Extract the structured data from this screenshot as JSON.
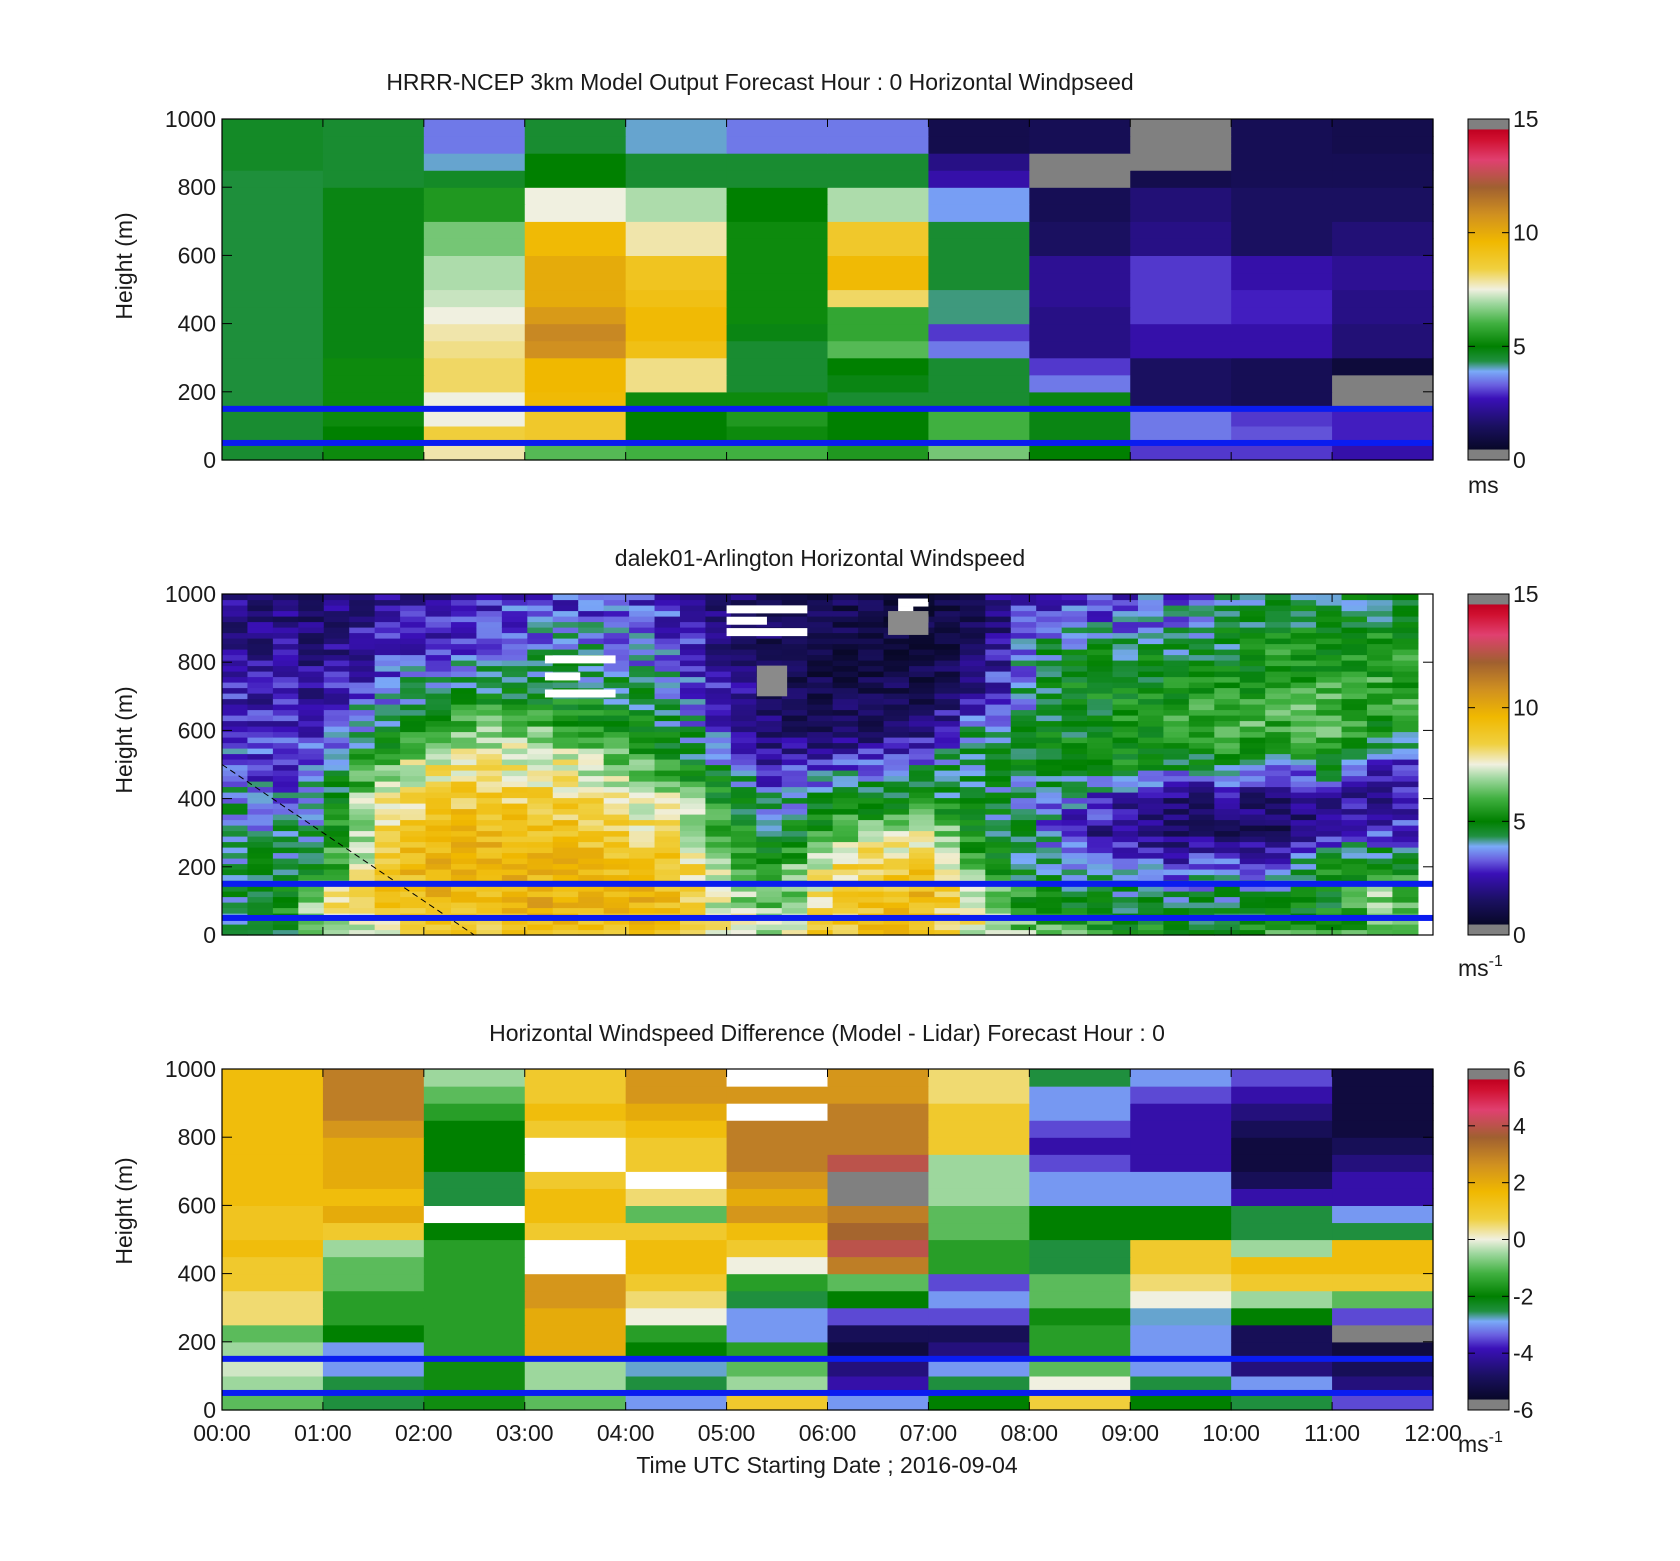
{
  "figure": {
    "xlabel": "Time UTC  Starting Date ; 2016-09-04",
    "x_tick_labels": [
      "00:00",
      "01:00",
      "02:00",
      "03:00",
      "04:00",
      "05:00",
      "06:00",
      "07:00",
      "08:00",
      "09:00",
      "10:00",
      "11:00",
      "12:00"
    ]
  },
  "colors": {
    "reference_line": "#0a1cf0",
    "axis": "#000000"
  },
  "chart_data": [
    {
      "type": "heatmap",
      "title": "HRRR-NCEP 3km Model Output   Forecast Hour : 0 Horizontal Windpseed",
      "ylabel": "Height (m)",
      "xlim": [
        "00:00",
        "12:00"
      ],
      "ylim": [
        0,
        1000
      ],
      "y_tick_labels": [
        "0",
        "200",
        "400",
        "600",
        "800",
        "1000"
      ],
      "colorbar": {
        "range": [
          0,
          15
        ],
        "tick_labels": [
          "0",
          "5",
          "10",
          "15"
        ],
        "unit": "ms",
        "unit_sup": ""
      },
      "reference_lines_height_m": [
        150,
        50
      ],
      "x_hours": [
        0.5,
        1.5,
        2.5,
        3.5,
        4.5,
        5.5,
        6.5,
        7.5,
        8.5,
        9.5,
        10.5,
        11.5
      ],
      "heights_m": [
        25,
        75,
        125,
        175,
        225,
        275,
        325,
        375,
        425,
        475,
        525,
        575,
        625,
        675,
        725,
        775,
        825,
        875,
        925,
        975
      ],
      "speeds": [
        [
          4.5,
          5.2,
          7.8,
          6.2,
          6.0,
          6.0,
          5.5,
          6.5,
          5.0,
          3.0,
          3.0,
          2.5
        ],
        [
          4.5,
          5.0,
          8.5,
          8.8,
          5.0,
          5.2,
          5.0,
          6.0,
          4.8,
          3.5,
          3.2,
          2.8
        ],
        [
          4.5,
          5.2,
          7.5,
          8.8,
          5.0,
          5.5,
          5.0,
          6.0,
          4.8,
          3.5,
          3.0,
          2.8
        ],
        [
          4.4,
          5.2,
          7.5,
          9.5,
          5.2,
          5.2,
          4.5,
          4.5,
          4.8,
          1.5,
          1.2,
          1.5
        ],
        [
          4.4,
          5.2,
          8.2,
          9.6,
          8.0,
          4.5,
          4.8,
          4.5,
          3.5,
          1.5,
          1.2,
          0.5
        ],
        [
          4.4,
          5.2,
          8.2,
          9.6,
          8.0,
          4.5,
          5.0,
          4.5,
          3.0,
          1.5,
          1.2,
          0.5
        ],
        [
          4.4,
          4.8,
          8.0,
          10.8,
          9.2,
          4.5,
          6.2,
          3.5,
          2.0,
          2.5,
          2.5,
          1.8
        ],
        [
          4.4,
          4.8,
          7.8,
          11.0,
          9.5,
          4.8,
          5.8,
          3.0,
          2.0,
          2.5,
          2.5,
          1.8
        ],
        [
          4.4,
          4.8,
          7.5,
          10.5,
          9.5,
          5.2,
          5.8,
          4.2,
          2.0,
          3.0,
          2.8,
          2.0
        ],
        [
          4.4,
          4.8,
          7.2,
          10.0,
          9.2,
          5.2,
          8.2,
          4.2,
          2.2,
          3.0,
          2.8,
          2.0
        ],
        [
          4.4,
          4.8,
          7.0,
          10.0,
          9.0,
          5.2,
          9.5,
          4.5,
          2.2,
          3.0,
          2.5,
          2.2
        ],
        [
          4.4,
          4.8,
          7.0,
          10.0,
          9.0,
          5.2,
          9.5,
          4.5,
          2.2,
          3.0,
          2.5,
          2.2
        ],
        [
          4.4,
          4.8,
          6.5,
          9.5,
          7.8,
          5.2,
          8.8,
          4.5,
          1.5,
          2.0,
          1.5,
          1.8
        ],
        [
          4.4,
          4.8,
          6.5,
          9.5,
          7.8,
          5.2,
          8.8,
          4.5,
          1.5,
          2.0,
          1.5,
          1.8
        ],
        [
          4.4,
          4.8,
          5.5,
          7.5,
          7.0,
          5.0,
          7.0,
          3.8,
          1.2,
          1.8,
          1.5,
          1.5
        ],
        [
          4.4,
          4.8,
          5.5,
          7.5,
          7.0,
          5.0,
          7.0,
          3.8,
          1.2,
          1.8,
          1.5,
          1.5
        ],
        [
          4.4,
          4.5,
          4.6,
          5.0,
          4.5,
          4.5,
          4.5,
          2.5,
          1.0,
          1.0,
          1.2,
          1.2
        ],
        [
          4.6,
          4.5,
          4.0,
          5.0,
          4.5,
          4.5,
          4.5,
          2.0,
          0.6,
          0.5,
          1.2,
          1.2
        ],
        [
          4.6,
          4.5,
          3.5,
          4.5,
          4.0,
          3.5,
          3.5,
          1.0,
          1.2,
          0.8,
          1.2,
          1.0
        ],
        [
          4.6,
          4.5,
          3.5,
          4.5,
          4.0,
          3.5,
          3.5,
          1.0,
          1.2,
          0.8,
          1.2,
          1.0
        ]
      ],
      "missing_cells": [
        [
          16,
          8
        ],
        [
          17,
          8
        ],
        [
          17,
          9
        ],
        [
          18,
          9
        ],
        [
          19,
          9
        ],
        [
          3,
          11
        ],
        [
          4,
          11
        ]
      ]
    },
    {
      "type": "heatmap",
      "title": "dalek01-Arlington  Horizontal Windspeed",
      "ylabel": "Height (m)",
      "xlim": [
        "00:00",
        "12:00"
      ],
      "ylim": [
        0,
        1000
      ],
      "y_tick_labels": [
        "0",
        "200",
        "400",
        "600",
        "800",
        "1000"
      ],
      "colorbar": {
        "range": [
          0,
          15
        ],
        "tick_labels": [
          "0",
          "5",
          "10",
          "15"
        ],
        "unit": "ms",
        "unit_sup": "-1"
      },
      "reference_lines_height_m": [
        150,
        50
      ],
      "lidar_x_end_hour": 11.85,
      "dashed_line": {
        "x_hours": [
          0.0,
          2.5
        ],
        "heights_m": [
          500,
          0
        ]
      },
      "keyframes_hour": [
        0,
        0.5,
        1,
        1.5,
        2,
        2.5,
        3,
        3.5,
        4,
        4.5,
        5,
        5.5,
        6,
        6.5,
        7,
        7.5,
        8,
        8.5,
        9,
        9.5,
        10,
        10.5,
        11,
        11.5,
        12
      ],
      "keyframes_height_m": [
        0,
        100,
        200,
        300,
        400,
        500,
        600,
        700,
        800,
        900,
        1000
      ],
      "keyframe_speeds": [
        [
          4.5,
          4.2,
          4.2,
          4.5,
          4.0,
          3.5,
          3.0,
          2.8,
          2.5,
          2.2,
          2.0
        ],
        [
          4.5,
          5.0,
          4.5,
          4.0,
          3.5,
          3.0,
          2.8,
          2.5,
          2.3,
          2.0,
          1.8
        ],
        [
          6.0,
          7.5,
          5.0,
          4.5,
          4.0,
          3.5,
          3.0,
          2.5,
          2.0,
          1.8,
          1.5
        ],
        [
          7.5,
          9.0,
          8.5,
          8.0,
          7.5,
          6.0,
          4.5,
          3.5,
          2.8,
          2.5,
          2.2
        ],
        [
          8.5,
          9.5,
          9.5,
          9.2,
          8.5,
          7.5,
          6.0,
          4.5,
          3.5,
          2.5,
          2.2
        ],
        [
          8.5,
          9.5,
          9.5,
          9.5,
          8.8,
          8.0,
          6.5,
          5.0,
          3.8,
          3.0,
          2.5
        ],
        [
          8.8,
          9.8,
          9.5,
          9.2,
          8.5,
          7.8,
          6.5,
          5.0,
          4.0,
          3.5,
          3.0
        ],
        [
          9.0,
          9.8,
          9.5,
          9.0,
          8.5,
          7.5,
          6.0,
          5.0,
          4.2,
          3.5,
          3.0
        ],
        [
          9.0,
          9.5,
          9.2,
          8.5,
          7.5,
          6.5,
          5.5,
          4.5,
          4.0,
          3.5,
          3.0
        ],
        [
          9.0,
          9.5,
          9.0,
          8.0,
          7.0,
          5.5,
          4.5,
          4.0,
          3.5,
          3.0,
          2.8
        ],
        [
          8.0,
          7.0,
          6.5,
          6.0,
          5.0,
          4.0,
          3.0,
          2.5,
          2.0,
          1.8,
          1.5
        ],
        [
          7.0,
          6.0,
          5.5,
          4.5,
          3.5,
          2.5,
          1.5,
          1.2,
          1.0,
          1.2,
          1.5
        ],
        [
          9.0,
          8.5,
          8.0,
          6.0,
          4.5,
          3.0,
          1.5,
          1.0,
          0.8,
          1.0,
          1.2
        ],
        [
          9.0,
          9.0,
          8.8,
          7.0,
          5.0,
          3.5,
          1.5,
          1.0,
          0.8,
          0.8,
          1.0
        ],
        [
          9.2,
          9.5,
          9.2,
          7.5,
          5.0,
          4.0,
          2.0,
          1.2,
          0.8,
          0.8,
          1.0
        ],
        [
          7.5,
          7.0,
          6.0,
          5.0,
          4.5,
          4.5,
          4.2,
          2.5,
          1.5,
          1.0,
          1.0
        ],
        [
          6.5,
          5.5,
          4.5,
          4.2,
          4.0,
          4.5,
          4.5,
          4.0,
          4.2,
          3.5,
          2.8
        ],
        [
          6.0,
          4.5,
          4.0,
          2.5,
          3.5,
          4.8,
          5.0,
          5.0,
          5.2,
          3.5,
          2.8
        ],
        [
          5.5,
          4.5,
          3.5,
          2.0,
          2.5,
          5.0,
          5.5,
          5.0,
          5.0,
          3.5,
          3.0
        ],
        [
          5.0,
          4.5,
          3.0,
          1.5,
          1.5,
          4.5,
          5.5,
          5.5,
          5.0,
          4.0,
          3.5
        ],
        [
          5.5,
          4.5,
          3.5,
          1.5,
          2.0,
          5.0,
          6.0,
          5.5,
          5.0,
          4.5,
          4.0
        ],
        [
          6.0,
          4.5,
          3.5,
          1.2,
          1.5,
          3.5,
          6.0,
          6.0,
          5.5,
          5.0,
          4.5
        ],
        [
          6.0,
          5.0,
          5.5,
          2.5,
          2.0,
          5.0,
          6.0,
          6.0,
          5.5,
          5.0,
          4.5
        ],
        [
          5.5,
          7.0,
          5.5,
          3.0,
          2.2,
          2.5,
          5.0,
          6.0,
          5.5,
          5.0,
          4.5
        ],
        [
          5.0,
          5.5,
          5.0,
          3.0,
          2.5,
          3.0,
          4.5,
          5.5,
          5.5,
          5.0,
          4.5
        ]
      ],
      "missing_patches": [
        {
          "x_hours": [
            3.2,
            3.9
          ],
          "heights_m": [
            700,
            850
          ]
        },
        {
          "x_hours": [
            5.0,
            5.8
          ],
          "heights_m": [
            880,
            980
          ]
        },
        {
          "x_hours": [
            6.7,
            7.0
          ],
          "heights_m": [
            920,
            990
          ]
        }
      ],
      "grey_patches": [
        {
          "x_hours": [
            5.3,
            5.6
          ],
          "heights_m": [
            700,
            790
          ]
        },
        {
          "x_hours": [
            6.6,
            7.0
          ],
          "heights_m": [
            880,
            950
          ]
        }
      ]
    },
    {
      "type": "heatmap",
      "title": "Horizontal Windspeed Difference (Model - Lidar) Forecast Hour : 0",
      "ylabel": "Height (m)",
      "xlim": [
        "00:00",
        "12:00"
      ],
      "ylim": [
        0,
        1000
      ],
      "y_tick_labels": [
        "0",
        "200",
        "400",
        "600",
        "800",
        "1000"
      ],
      "colorbar": {
        "range": [
          -6,
          6
        ],
        "tick_labels": [
          "-6",
          "-4",
          "-2",
          "0",
          "2",
          "4",
          "6"
        ],
        "unit": "ms",
        "unit_sup": "-1"
      },
      "reference_lines_height_m": [
        150,
        50
      ],
      "x_hours": [
        0.5,
        1.5,
        2.5,
        3.5,
        4.5,
        5.5,
        6.5,
        7.5,
        8.5,
        9.5,
        10.5,
        11.5
      ],
      "heights_m": [
        25,
        75,
        125,
        175,
        225,
        275,
        325,
        375,
        425,
        475,
        525,
        575,
        625,
        675,
        725,
        775,
        825,
        875,
        925,
        975
      ],
      "differences": [
        [
          -1.0,
          -2.5,
          -1.8,
          -1.0,
          -3.0,
          1.0,
          -3.0,
          -2.0,
          0.8,
          -2.0,
          -2.5,
          -3.5
        ],
        [
          -0.5,
          -2.5,
          -1.8,
          -0.5,
          -2.5,
          -0.5,
          -4.0,
          -2.5,
          0.0,
          -2.5,
          -3.0,
          -4.5
        ],
        [
          -0.2,
          -3.0,
          -1.8,
          -0.5,
          -2.8,
          -1.0,
          -4.5,
          -3.0,
          -1.0,
          -3.0,
          -4.5,
          -5.0
        ],
        [
          -0.5,
          -3.0,
          -1.5,
          2.0,
          -2.0,
          -1.5,
          -5.5,
          -4.5,
          -1.5,
          -3.0,
          -5.0,
          -5.5
        ],
        [
          -1.0,
          -2.0,
          -1.5,
          2.0,
          -1.5,
          -3.0,
          -5.0,
          -5.0,
          -1.5,
          -3.0,
          -5.0,
          -2.5
        ],
        [
          0.5,
          -1.5,
          -1.5,
          2.0,
          0.0,
          -3.0,
          -3.5,
          -3.5,
          -1.8,
          -2.8,
          -2.0,
          -3.5
        ],
        [
          0.5,
          -1.5,
          -1.5,
          2.5,
          0.5,
          -2.5,
          -2.0,
          -3.0,
          -1.0,
          0.0,
          -0.5,
          -1.0
        ],
        [
          1.0,
          -1.0,
          -1.5,
          2.5,
          1.0,
          -1.5,
          -1.0,
          -3.5,
          -1.0,
          0.5,
          1.0,
          1.0
        ],
        [
          1.0,
          -1.0,
          -1.5,
          3.0,
          1.5,
          0.0,
          3.0,
          -1.5,
          -2.5,
          1.0,
          1.5,
          1.5
        ],
        [
          1.5,
          -0.5,
          -1.5,
          3.5,
          1.5,
          1.0,
          4.0,
          -1.5,
          -2.5,
          1.0,
          -0.5,
          1.5
        ],
        [
          1.2,
          1.0,
          -2.0,
          1.0,
          1.0,
          1.5,
          3.5,
          -1.0,
          -2.0,
          -2.0,
          -2.5,
          -2.5
        ],
        [
          1.2,
          2.0,
          -2.0,
          1.5,
          -1.0,
          2.5,
          3.0,
          -1.0,
          -2.0,
          -2.0,
          -2.5,
          -3.0
        ],
        [
          1.5,
          1.5,
          -2.5,
          1.5,
          0.5,
          2.0,
          3.5,
          -0.5,
          -3.0,
          -3.0,
          -4.0,
          -4.0
        ],
        [
          1.5,
          2.0,
          -2.5,
          1.0,
          0.5,
          2.5,
          4.5,
          -0.5,
          -3.0,
          -3.0,
          -5.0,
          -4.0
        ],
        [
          1.5,
          2.0,
          -2.0,
          0.0,
          1.0,
          3.0,
          4.0,
          -0.5,
          -3.5,
          -4.0,
          -5.5,
          -4.5
        ],
        [
          1.5,
          2.0,
          -2.0,
          0.0,
          1.0,
          3.0,
          3.0,
          1.0,
          -4.0,
          -4.0,
          -5.5,
          -5.0
        ],
        [
          1.5,
          2.5,
          -2.0,
          1.0,
          1.5,
          3.0,
          3.0,
          1.0,
          -3.5,
          -4.0,
          -5.0,
          -5.5
        ],
        [
          1.5,
          3.0,
          -1.5,
          1.5,
          2.0,
          3.0,
          3.0,
          1.0,
          -3.0,
          -4.0,
          -4.5,
          -5.5
        ],
        [
          1.5,
          3.0,
          -1.0,
          1.0,
          2.5,
          2.5,
          2.5,
          0.5,
          -3.0,
          -3.5,
          -4.0,
          -5.5
        ],
        [
          1.5,
          3.0,
          -0.5,
          1.0,
          2.5,
          2.5,
          2.5,
          0.5,
          -2.5,
          -3.0,
          -3.5,
          -5.5
        ]
      ],
      "missing_cells": [
        [
          11,
          2
        ],
        [
          8,
          3
        ],
        [
          9,
          3
        ],
        [
          14,
          3
        ],
        [
          15,
          3
        ],
        [
          13,
          4
        ],
        [
          17,
          5
        ],
        [
          19,
          5
        ]
      ],
      "grey_cells": [
        [
          12,
          6
        ],
        [
          13,
          6
        ],
        [
          4,
          11
        ]
      ]
    }
  ]
}
